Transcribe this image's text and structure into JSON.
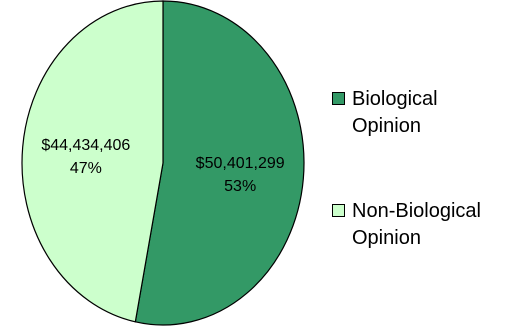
{
  "chart_data": {
    "type": "pie",
    "slices": [
      {
        "name_line1": "Biological",
        "name_line2": "Opinion",
        "value": 50401299,
        "value_label": "$50,401,299",
        "percent_label": "53%",
        "color": "#339966"
      },
      {
        "name_line1": "Non-Biological",
        "name_line2": "Opinion",
        "value": 44434406,
        "value_label": "$44,434,406",
        "percent_label": "47%",
        "color": "#CCFFCC"
      }
    ],
    "start_angle": "12 o'clock",
    "direction": "clockwise",
    "legend_position": "right"
  }
}
